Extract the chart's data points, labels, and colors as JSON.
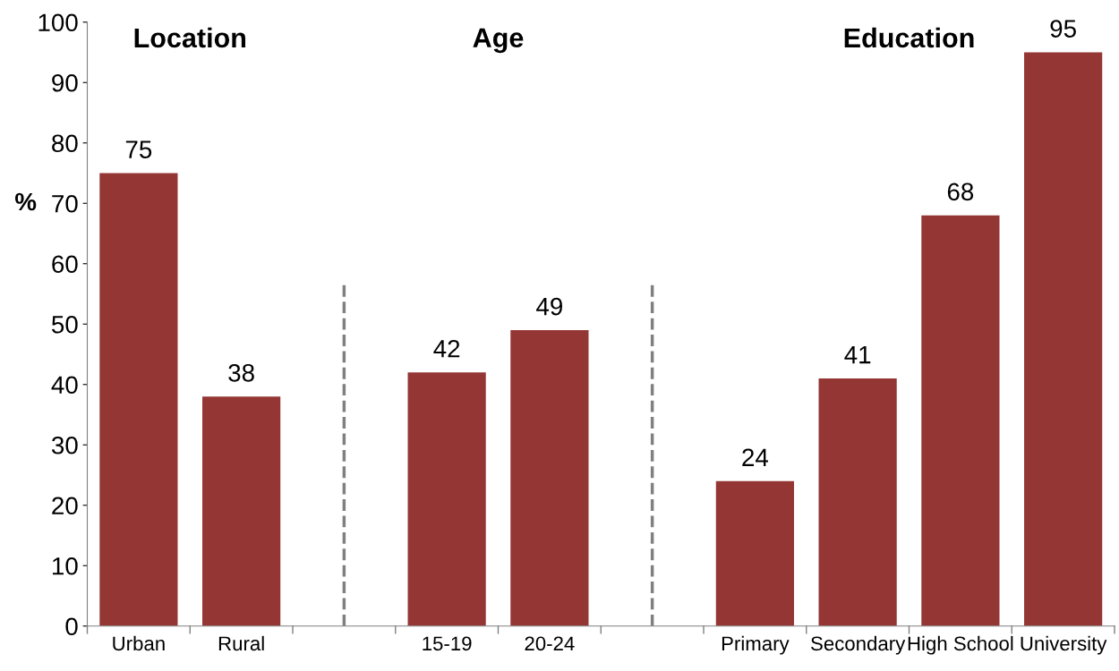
{
  "chart_data": {
    "type": "bar",
    "ylabel": "%",
    "categories": [
      "Urban",
      "Rural",
      null,
      "15-19",
      "20-24",
      null,
      "Primary",
      "Secondary",
      "High School",
      "University"
    ],
    "values": [
      75,
      38,
      null,
      42,
      49,
      null,
      24,
      41,
      68,
      95
    ],
    "color": "#943634",
    "ylim": [
      0,
      100
    ],
    "yticks": [
      0,
      10,
      20,
      30,
      40,
      50,
      60,
      70,
      80,
      90,
      100
    ],
    "grid": false,
    "data_labels": true,
    "annotations": [
      "Location",
      "Age",
      "Education"
    ]
  }
}
